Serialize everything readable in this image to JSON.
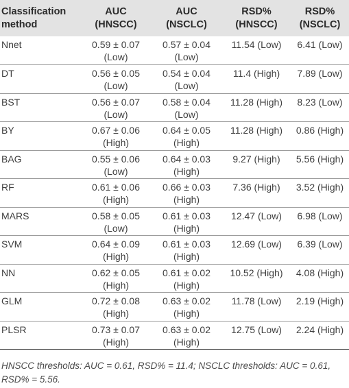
{
  "table": {
    "headers": [
      {
        "line1": "Classification",
        "line2": "method"
      },
      {
        "line1": "AUC",
        "line2": "(HNSCC)"
      },
      {
        "line1": "AUC",
        "line2": "(NSCLC)"
      },
      {
        "line1": "RSD%",
        "line2": "(HNSCC)"
      },
      {
        "line1": "RSD%",
        "line2": "(NSCLC)"
      }
    ],
    "rows": [
      {
        "method": "Nnet",
        "auc_hnscc": "0.59 ± 0.07",
        "auc_hnscc_level": "(Low)",
        "auc_nsclc": "0.57 ± 0.04",
        "auc_nsclc_level": "(Low)",
        "rsd_hnscc": "11.54 (Low)",
        "rsd_nsclc": "6.41 (Low)"
      },
      {
        "method": "DT",
        "auc_hnscc": "0.56 ± 0.05",
        "auc_hnscc_level": "(Low)",
        "auc_nsclc": "0.54 ± 0.04",
        "auc_nsclc_level": "(Low)",
        "rsd_hnscc": "11.4 (High)",
        "rsd_nsclc": "7.89 (Low)"
      },
      {
        "method": "BST",
        "auc_hnscc": "0.56 ± 0.07",
        "auc_hnscc_level": "(Low)",
        "auc_nsclc": "0.58 ± 0.04",
        "auc_nsclc_level": "(Low)",
        "rsd_hnscc": "11.28 (High)",
        "rsd_nsclc": "8.23 (Low)"
      },
      {
        "method": "BY",
        "auc_hnscc": "0.67 ± 0.06",
        "auc_hnscc_level": "(High)",
        "auc_nsclc": "0.64 ± 0.05",
        "auc_nsclc_level": "(High)",
        "rsd_hnscc": "11.28 (High)",
        "rsd_nsclc": "0.86 (High)"
      },
      {
        "method": "BAG",
        "auc_hnscc": "0.55 ± 0.06",
        "auc_hnscc_level": "(Low)",
        "auc_nsclc": "0.64 ± 0.03",
        "auc_nsclc_level": "(High)",
        "rsd_hnscc": "9.27 (High)",
        "rsd_nsclc": "5.56 (High)"
      },
      {
        "method": "RF",
        "auc_hnscc": "0.61 ± 0.06",
        "auc_hnscc_level": "(High)",
        "auc_nsclc": "0.66 ± 0.03",
        "auc_nsclc_level": "(High)",
        "rsd_hnscc": "7.36 (High)",
        "rsd_nsclc": "3.52 (High)"
      },
      {
        "method": "MARS",
        "auc_hnscc": "0.58 ± 0.05",
        "auc_hnscc_level": "(Low)",
        "auc_nsclc": "0.61 ± 0.03",
        "auc_nsclc_level": "(High)",
        "rsd_hnscc": "12.47 (Low)",
        "rsd_nsclc": "6.98 (Low)"
      },
      {
        "method": "SVM",
        "auc_hnscc": "0.64 ± 0.09",
        "auc_hnscc_level": "(High)",
        "auc_nsclc": "0.61 ± 0.03",
        "auc_nsclc_level": "(High)",
        "rsd_hnscc": "12.69 (Low)",
        "rsd_nsclc": "6.39 (Low)"
      },
      {
        "method": "NN",
        "auc_hnscc": "0.62 ± 0.05",
        "auc_hnscc_level": "(High)",
        "auc_nsclc": "0.61 ± 0.02",
        "auc_nsclc_level": "(High)",
        "rsd_hnscc": "10.52 (High)",
        "rsd_nsclc": "4.08 (High)"
      },
      {
        "method": "GLM",
        "auc_hnscc": "0.72 ± 0.08",
        "auc_hnscc_level": "(High)",
        "auc_nsclc": "0.63 ± 0.02",
        "auc_nsclc_level": "(High)",
        "rsd_hnscc": "11.78 (Low)",
        "rsd_nsclc": "2.19 (High)"
      },
      {
        "method": "PLSR",
        "auc_hnscc": "0.73 ± 0.07",
        "auc_hnscc_level": "(High)",
        "auc_nsclc": "0.63 ± 0.02",
        "auc_nsclc_level": "(High)",
        "rsd_hnscc": "12.75 (Low)",
        "rsd_nsclc": "2.24 (High)"
      }
    ]
  },
  "footnote": {
    "line1": "HNSCC thresholds: AUC = 0.61, RSD% = 11.4; NSCLC thresholds: AUC = 0.61,",
    "line2": "RSD% = 5.56."
  }
}
